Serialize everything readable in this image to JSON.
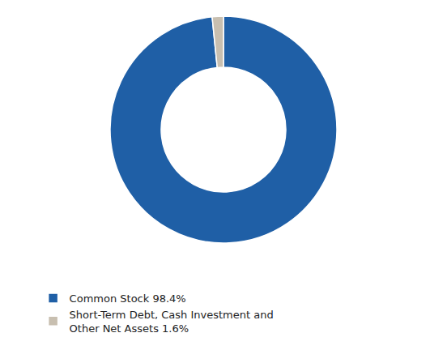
{
  "chart_data": {
    "type": "donut",
    "categories": [
      "Common Stock 98.4%",
      "Short-Term Debt, Cash Investment and\nOther Net Assets 1.6%"
    ],
    "values": [
      98.4,
      1.6
    ],
    "colors": [
      "#1F5FA6",
      "#C8BFB0"
    ],
    "legend": "lower left"
  }
}
